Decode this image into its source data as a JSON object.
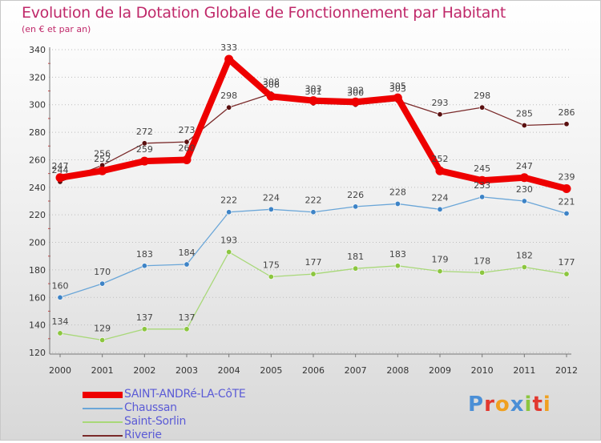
{
  "header": {
    "title": "Evolution de la Dotation Globale de Fonctionnement par Habitant",
    "subtitle": "(en € et par an)"
  },
  "logo": {
    "letters": [
      "P",
      "r",
      "o",
      "x",
      "i",
      "t",
      "i"
    ],
    "colors": [
      "#4b8fd6",
      "#e2382f",
      "#f0a020",
      "#4b8fd6",
      "#8cc63f",
      "#e2382f",
      "#f0a020"
    ]
  },
  "chart_data": {
    "type": "line",
    "title": "Evolution de la Dotation Globale de Fonctionnement par Habitant",
    "subtitle": "(en € et par an)",
    "xlabel": "",
    "ylabel": "",
    "x": [
      "2000",
      "2001",
      "2002",
      "2003",
      "2004",
      "2005",
      "2006",
      "2007",
      "2008",
      "2009",
      "2010",
      "2011",
      "2012"
    ],
    "ylim": [
      120,
      340
    ],
    "yticks": [
      120,
      140,
      160,
      180,
      200,
      220,
      240,
      260,
      280,
      300,
      320,
      340
    ],
    "grid": "horizontal dotted",
    "legend_position": "bottom-left",
    "series": [
      {
        "name": "Riverie",
        "color": "#7a2a2a",
        "marker": "#5a1010",
        "width": 1.3,
        "values": [
          244,
          256,
          272,
          273,
          298,
          308,
          301,
          300,
          303,
          293,
          298,
          285,
          286
        ],
        "labels": [
          "244",
          "256",
          "272",
          "273",
          "298",
          "308",
          "301",
          "300",
          "303",
          "293",
          "298",
          "285",
          "286"
        ]
      },
      {
        "name": "Chaussan",
        "color": "#6aa6d8",
        "marker": "#3d83c6",
        "width": 1.3,
        "values": [
          160,
          170,
          183,
          184,
          222,
          224,
          222,
          226,
          228,
          224,
          233,
          230,
          221
        ],
        "labels": [
          "160",
          "170",
          "183",
          "184",
          "222",
          "224",
          "222",
          "226",
          "228",
          "224",
          "233",
          "230",
          "221"
        ]
      },
      {
        "name": "Saint-Sorlin",
        "color": "#a8d878",
        "marker": "#8cc63f",
        "width": 1.3,
        "values": [
          134,
          129,
          137,
          137,
          193,
          175,
          177,
          181,
          183,
          179,
          178,
          182,
          177
        ],
        "labels": [
          "134",
          "129",
          "137",
          "137",
          "193",
          "175",
          "177",
          "181",
          "183",
          "179",
          "178",
          "182",
          "177"
        ]
      },
      {
        "name": "SAINT-ANDRé-LA-CôTE",
        "color": "#ee0000",
        "marker": "#ee0000",
        "width": 8,
        "values": [
          247,
          252,
          259,
          260,
          333,
          306,
          303,
          302,
          305,
          252,
          245,
          247,
          239
        ],
        "labels": [
          "247",
          "252",
          "259",
          "260",
          "333",
          "306",
          "303",
          "302",
          "305",
          "252",
          "245",
          "247",
          "239"
        ]
      }
    ],
    "legend": [
      {
        "name": "SAINT-ANDRé-LA-CôTE",
        "color": "#ee0000",
        "width": 8
      },
      {
        "name": "Chaussan",
        "color": "#6aa6d8",
        "width": 2
      },
      {
        "name": "Saint-Sorlin",
        "color": "#a8d878",
        "width": 2
      },
      {
        "name": "Riverie",
        "color": "#7a2a2a",
        "width": 2
      }
    ]
  }
}
